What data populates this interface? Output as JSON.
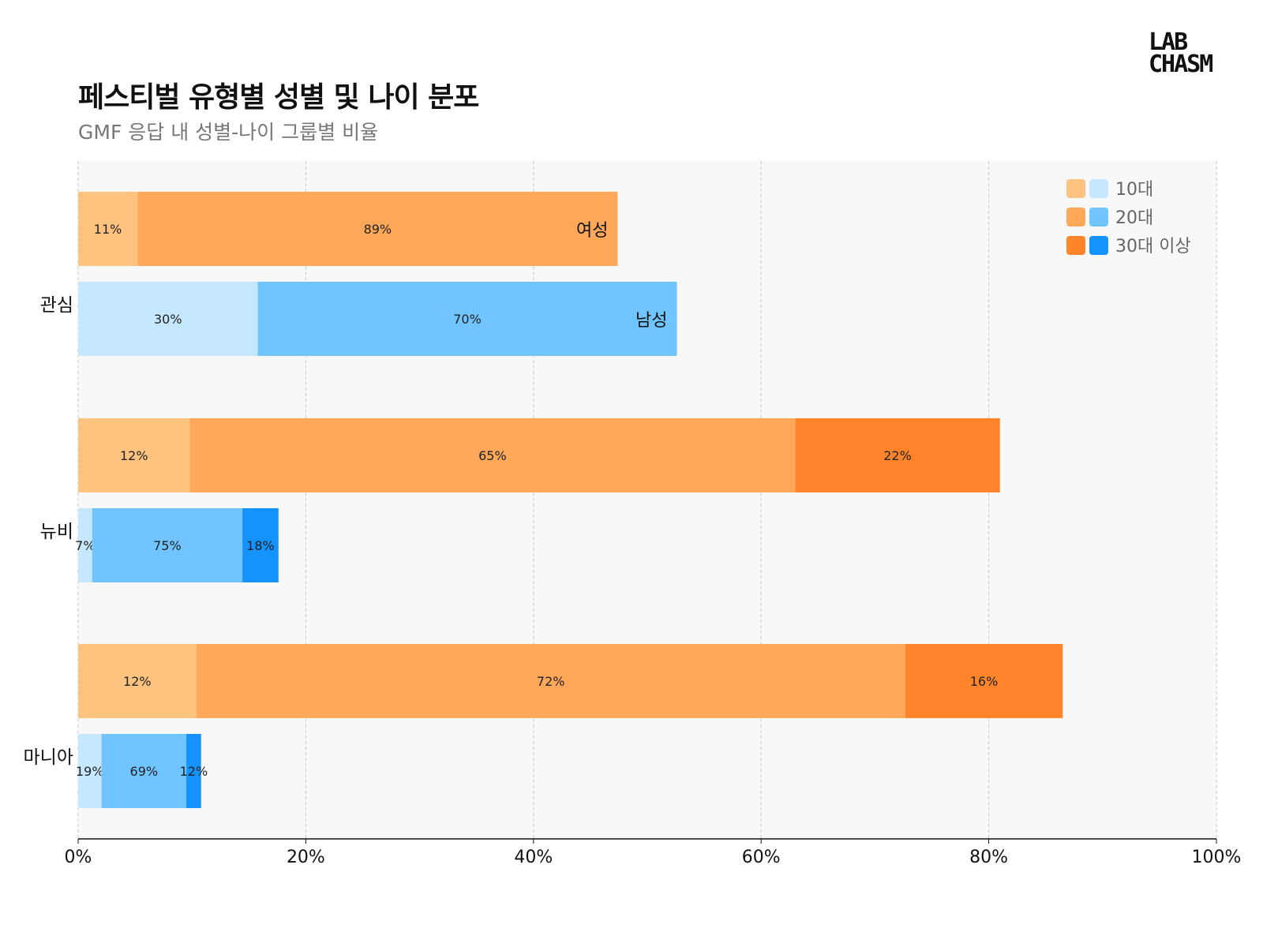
{
  "title": "페스티벌 유형별 성별 및 나이 분포",
  "subtitle": "GMF 응답 내 성별-나이 그룹별 비율",
  "logo": "LAB CHASM",
  "chart_data": {
    "type": "bar",
    "orientation": "horizontal-stacked",
    "title": "페스티벌 유형별 성별 및 나이 분포",
    "subtitle": "GMF 응답 내 성별-나이 그룹별 비율",
    "categories": [
      "관심",
      "뉴비",
      "마니아"
    ],
    "genders": [
      "여성",
      "남성"
    ],
    "age_groups": [
      "10대",
      "20대",
      "30대 이상"
    ],
    "bar_totals_percent": {
      "여성": [
        47.4,
        81.8,
        86.5
      ],
      "남성": [
        52.6,
        17.6,
        10.8
      ]
    },
    "segment_shares_percent": {
      "여성": [
        [
          11,
          89,
          0
        ],
        [
          12,
          65,
          22
        ],
        [
          12,
          72,
          16
        ]
      ],
      "남성": [
        [
          30,
          70,
          0
        ],
        [
          7,
          75,
          18
        ],
        [
          19,
          69,
          12
        ]
      ]
    },
    "segment_labels": {
      "여성": [
        [
          "11%",
          "89%",
          ""
        ],
        [
          "12%",
          "65%",
          "22%"
        ],
        [
          "12%",
          "72%",
          "16%"
        ]
      ],
      "남성": [
        [
          "30%",
          "70%",
          ""
        ],
        [
          "7%",
          "75%",
          "18%"
        ],
        [
          "19%",
          "69%",
          "12%"
        ]
      ]
    },
    "gender_labels_on": "관심",
    "xlim": [
      0,
      100
    ],
    "xticks": [
      "0%",
      "20%",
      "40%",
      "60%",
      "80%",
      "100%"
    ],
    "grid": true,
    "legend": {
      "placement": "top-right",
      "entries": [
        "10대",
        "20대",
        "30대 이상"
      ]
    },
    "colors": {
      "여성": [
        "#FFC380",
        "#FFA85A",
        "#FF842A"
      ],
      "남성": [
        "#C6E8FF",
        "#70C4FF",
        "#1493FF"
      ]
    }
  }
}
